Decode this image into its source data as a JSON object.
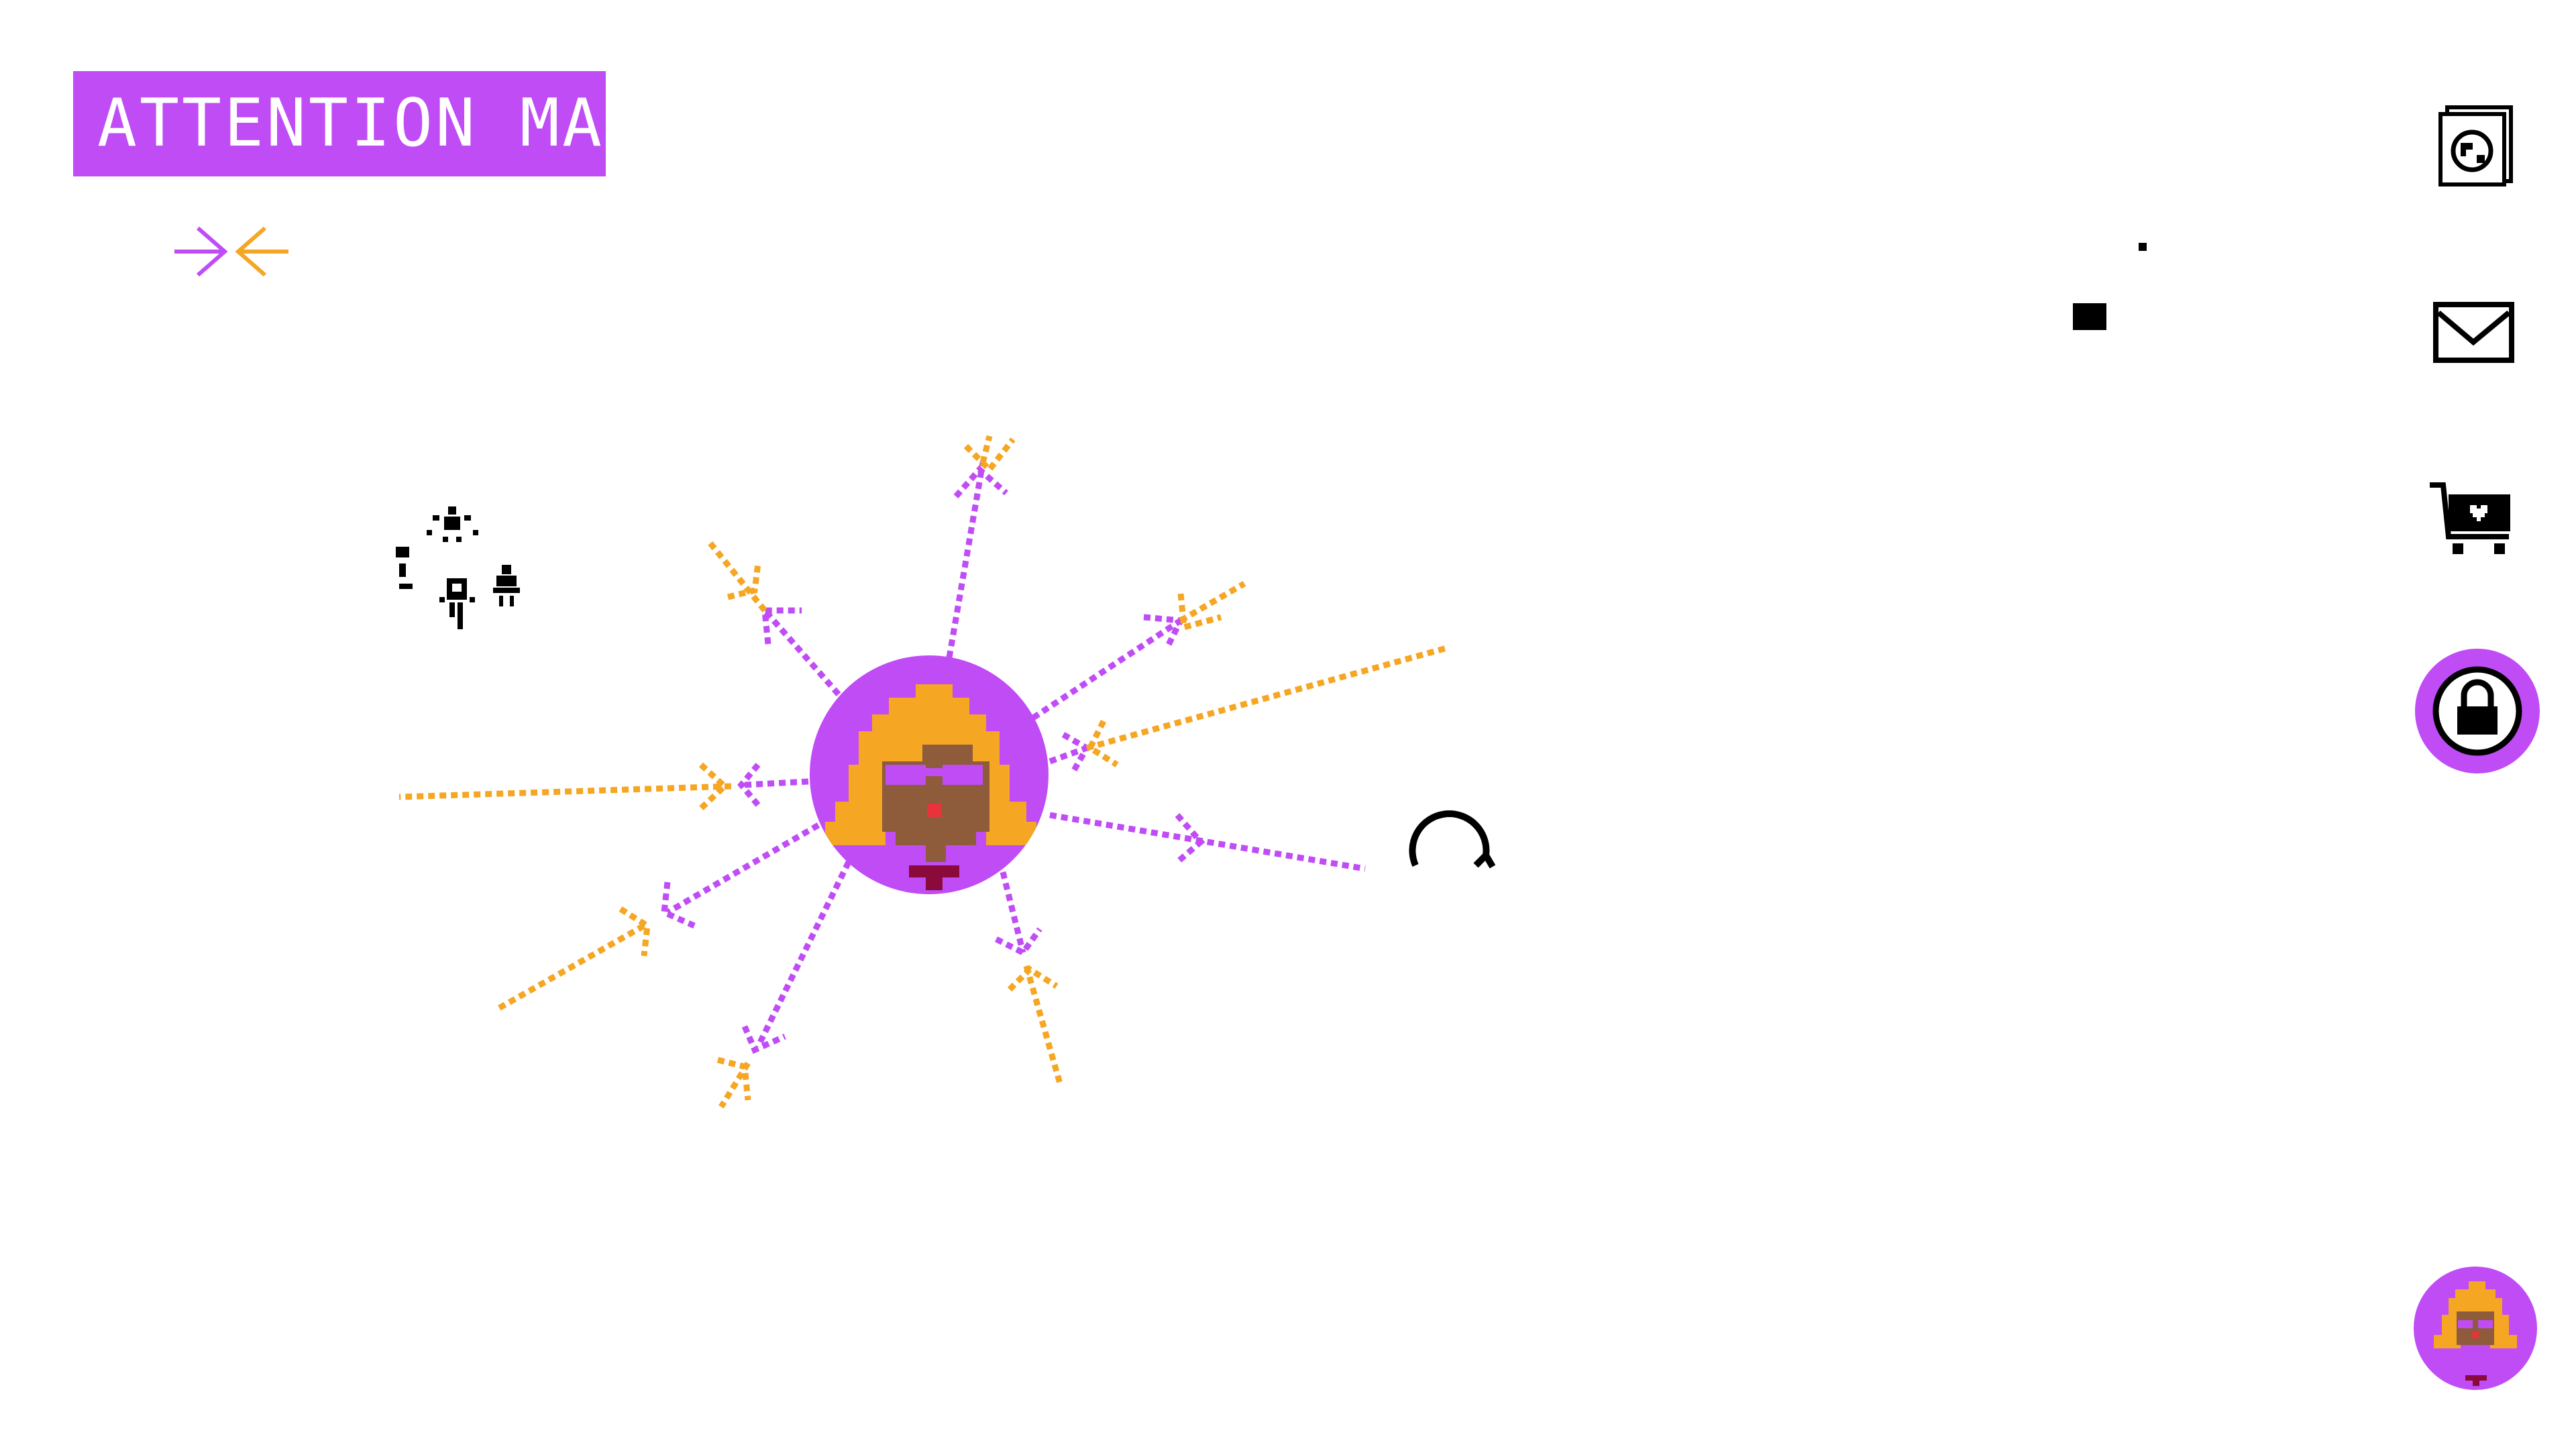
{
  "header": {
    "title": "ATTENTION MAP"
  },
  "legend": {
    "incoming_color": "#c04cf6",
    "outgoing_color": "#f5a623"
  },
  "colors": {
    "purple": "#c04cf6",
    "orange": "#f5a623",
    "skin": "#8e5c3a",
    "lips": "#e8333a",
    "shirt": "#8a0a3c",
    "black": "#000000"
  },
  "center_avatar": {
    "name": "user-avatar"
  },
  "connections": [
    {
      "id": "up",
      "color": "purple"
    },
    {
      "id": "up-left",
      "color": "purple"
    },
    {
      "id": "up-right",
      "color": "purple"
    },
    {
      "id": "right",
      "color": "orange"
    },
    {
      "id": "left",
      "color": "orange"
    },
    {
      "id": "down-left",
      "color": "orange"
    },
    {
      "id": "down-left-2",
      "color": "purple"
    },
    {
      "id": "down",
      "color": "orange"
    },
    {
      "id": "right-low",
      "color": "purple"
    }
  ],
  "sidebar": {
    "items": [
      {
        "name": "news",
        "icon": "globe-document-icon"
      },
      {
        "name": "mail",
        "icon": "envelope-icon"
      },
      {
        "name": "shopping",
        "icon": "cart-heart-icon"
      },
      {
        "name": "privacy",
        "icon": "lock-icon",
        "active": true
      }
    ],
    "profile_icon": "user-avatar-icon"
  }
}
